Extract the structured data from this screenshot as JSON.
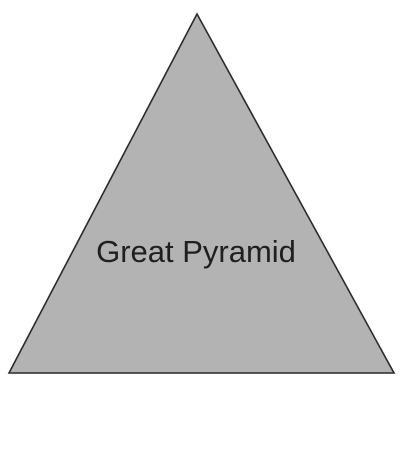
{
  "diagram": {
    "shape": "triangle",
    "label": "Great Pyramid",
    "colors": {
      "fill": "#b3b3b3",
      "stroke": "#2b2b2b",
      "text": "#1f1f1f",
      "background": "#ffffff"
    }
  }
}
